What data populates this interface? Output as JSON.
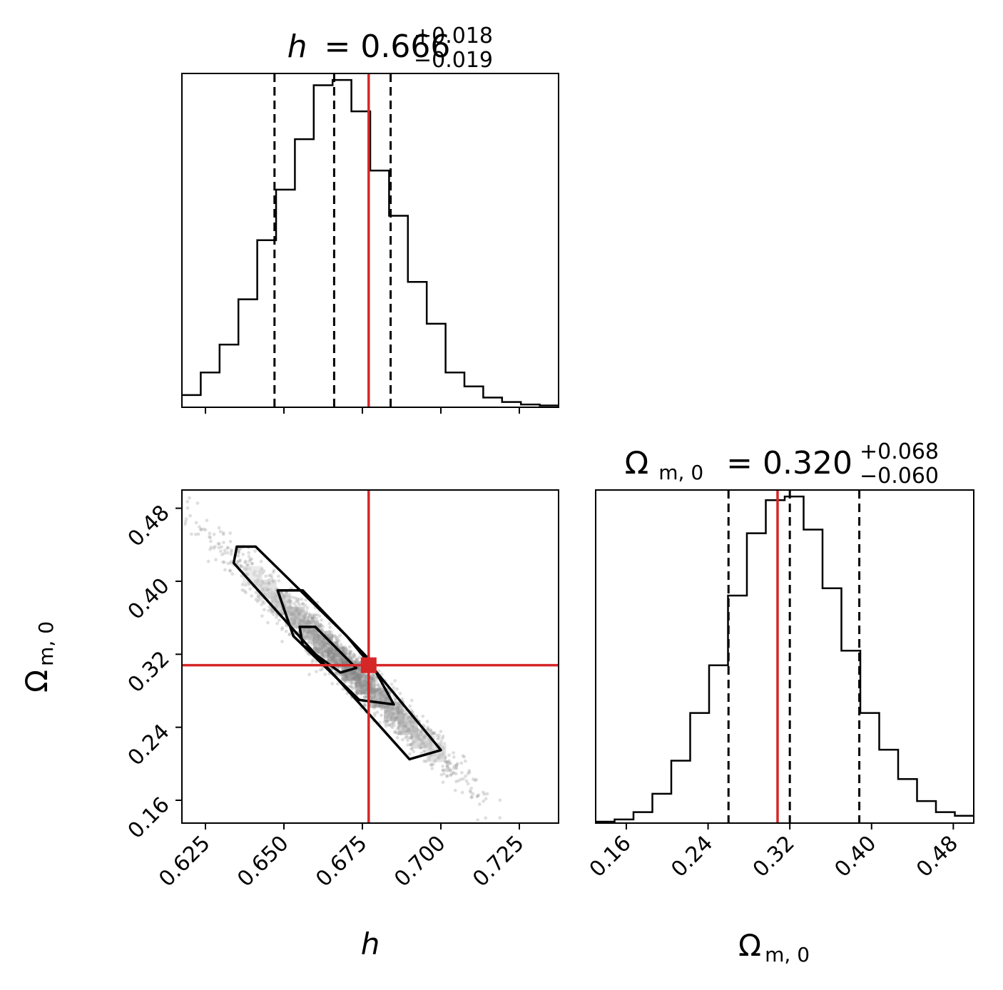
{
  "chart_data": [
    {
      "type": "histogram",
      "panel": "h-marginal",
      "title": {
        "symbol": "h",
        "equals": "= 0.666",
        "plus": "+0.018",
        "minus": "−0.019"
      },
      "xlim": [
        0.6175,
        0.7375
      ],
      "xticks": [
        0.625,
        0.65,
        0.675,
        0.7,
        0.725
      ],
      "bin_edges": [
        0.6175,
        0.6235,
        0.6295,
        0.6355,
        0.6415,
        0.6475,
        0.6535,
        0.6595,
        0.6655,
        0.6715,
        0.6775,
        0.6835,
        0.6895,
        0.6955,
        0.7015,
        0.7075,
        0.7135,
        0.7195,
        0.7255,
        0.7315,
        0.7375
      ],
      "counts": [
        35,
        100,
        180,
        310,
        480,
        625,
        770,
        925,
        940,
        850,
        680,
        550,
        360,
        240,
        100,
        60,
        28,
        15,
        8,
        5
      ],
      "quantiles": [
        0.647,
        0.666,
        0.684
      ],
      "truth": 0.677,
      "colors": {
        "line": "#000000",
        "truth": "#d62728"
      }
    },
    {
      "type": "scatter",
      "panel": "h-vs-omega-2d",
      "xlim": [
        0.6175,
        0.7375
      ],
      "ylim": [
        0.135,
        0.5
      ],
      "xticks": [
        0.625,
        0.65,
        0.675,
        0.7,
        0.725
      ],
      "yticks": [
        0.16,
        0.24,
        0.32,
        0.4,
        0.48
      ],
      "xlabel": "h",
      "ylabel": {
        "main": "Ω",
        "sub": "m, 0"
      },
      "contours": [
        [
          [
            0.635,
            0.438
          ],
          [
            0.641,
            0.438
          ],
          [
            0.67,
            0.34
          ],
          [
            0.7,
            0.215
          ],
          [
            0.69,
            0.205
          ],
          [
            0.634,
            0.42
          ]
        ],
        [
          [
            0.648,
            0.39
          ],
          [
            0.656,
            0.39
          ],
          [
            0.677,
            0.315
          ],
          [
            0.685,
            0.265
          ],
          [
            0.674,
            0.27
          ],
          [
            0.653,
            0.34
          ]
        ],
        [
          [
            0.655,
            0.35
          ],
          [
            0.66,
            0.35
          ],
          [
            0.673,
            0.305
          ],
          [
            0.668,
            0.3
          ],
          [
            0.656,
            0.33
          ]
        ]
      ],
      "truth": {
        "x": 0.677,
        "y": 0.308
      },
      "colors": {
        "points": "#8c8c8c",
        "contour": "#000000",
        "truth": "#d62728"
      }
    },
    {
      "type": "histogram",
      "panel": "omega-marginal",
      "title": {
        "symbol": "Ω",
        "sub": "m, 0",
        "equals": "= 0.320",
        "plus": "+0.068",
        "minus": "−0.060"
      },
      "xlim": [
        0.13,
        0.5
      ],
      "xticks": [
        0.16,
        0.24,
        0.32,
        0.4,
        0.48
      ],
      "xlabel": {
        "main": "Ω",
        "sub": "m, 0"
      },
      "bin_edges": [
        0.13,
        0.1485,
        0.167,
        0.1855,
        0.204,
        0.2225,
        0.241,
        0.2595,
        0.278,
        0.2965,
        0.315,
        0.3335,
        0.352,
        0.3705,
        0.389,
        0.4075,
        0.426,
        0.4445,
        0.463,
        0.4815,
        0.5
      ],
      "counts": [
        4,
        10,
        30,
        80,
        170,
        300,
        430,
        620,
        790,
        880,
        890,
        800,
        640,
        470,
        300,
        200,
        120,
        60,
        30,
        20
      ],
      "quantiles": [
        0.26,
        0.32,
        0.388
      ],
      "truth": 0.308,
      "colors": {
        "line": "#000000",
        "truth": "#d62728"
      }
    }
  ]
}
